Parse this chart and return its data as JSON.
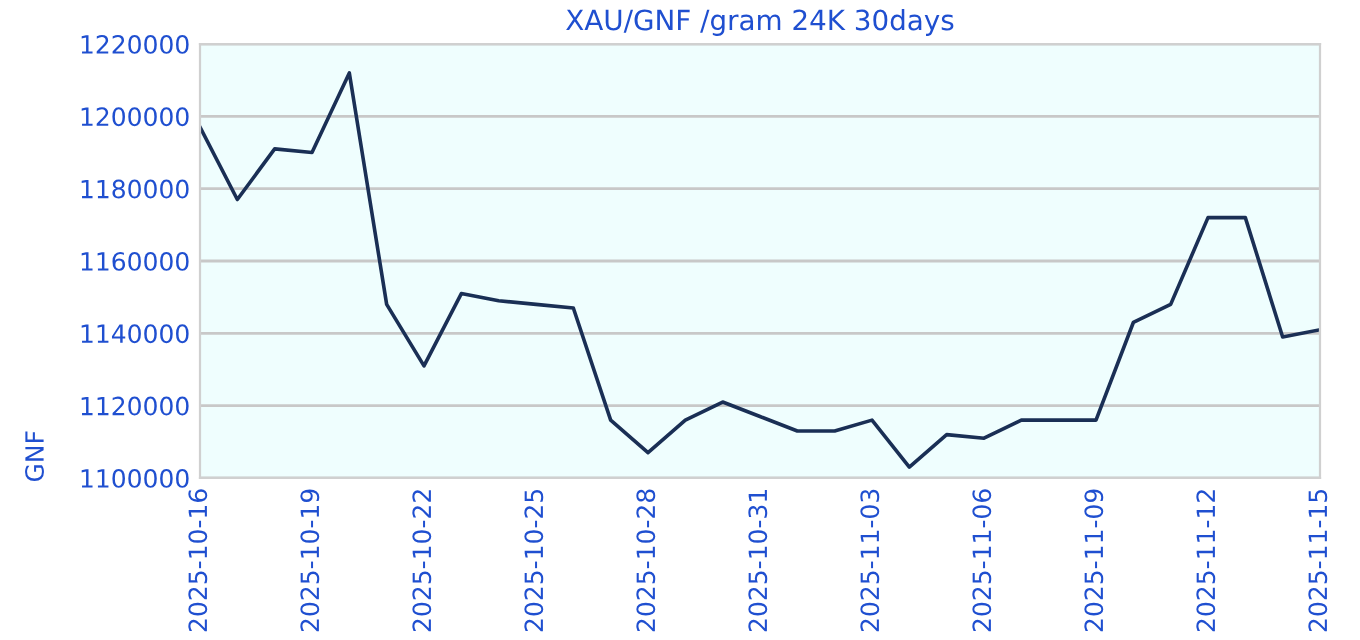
{
  "chart_data": {
    "type": "line",
    "title": "XAU/GNF /gram 24K 30days",
    "ylabel": "GNF",
    "x": [
      "2025-10-16",
      "2025-10-17",
      "2025-10-18",
      "2025-10-19",
      "2025-10-20",
      "2025-10-21",
      "2025-10-22",
      "2025-10-23",
      "2025-10-24",
      "2025-10-25",
      "2025-10-26",
      "2025-10-27",
      "2025-10-28",
      "2025-10-29",
      "2025-10-30",
      "2025-10-31",
      "2025-11-01",
      "2025-11-02",
      "2025-11-03",
      "2025-11-04",
      "2025-11-05",
      "2025-11-06",
      "2025-11-07",
      "2025-11-08",
      "2025-11-09",
      "2025-11-10",
      "2025-11-11",
      "2025-11-12",
      "2025-11-13",
      "2025-11-14",
      "2025-11-15"
    ],
    "series": [
      {
        "color": "#1a2f55",
        "values": [
          1197000,
          1177000,
          1191000,
          1190000,
          1212000,
          1148000,
          1131000,
          1151000,
          1149000,
          1148000,
          1147000,
          1116000,
          1107000,
          1116000,
          1121000,
          1117000,
          1113000,
          1113000,
          1116000,
          1103000,
          1112000,
          1111000,
          1116000,
          1116000,
          1116000,
          1143000,
          1148000,
          1172000,
          1172000,
          1139000,
          1141000
        ]
      }
    ],
    "xlim": [
      "2025-10-16",
      "2025-11-15"
    ],
    "xticks": [
      "2025-10-16",
      "2025-10-19",
      "2025-10-22",
      "2025-10-25",
      "2025-10-28",
      "2025-10-31",
      "2025-11-03",
      "2025-11-06",
      "2025-11-09",
      "2025-11-12",
      "2025-11-15"
    ],
    "ylim": [
      1100000,
      1220000
    ],
    "yticks": [
      1100000,
      1120000,
      1140000,
      1160000,
      1180000,
      1200000,
      1220000
    ],
    "grid": "y",
    "legend": false,
    "marker": "none",
    "line_style": "solid"
  }
}
